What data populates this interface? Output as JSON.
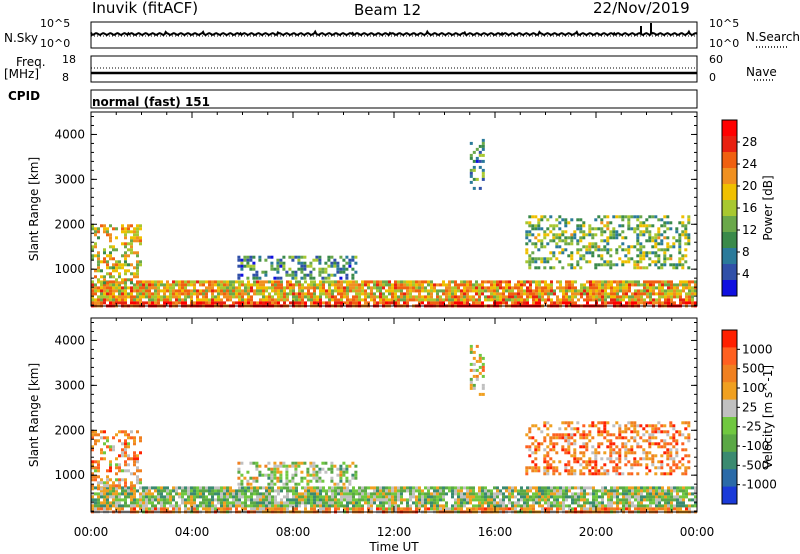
{
  "header": {
    "station": "Inuvik (fitACF)",
    "beam": "Beam 12",
    "date": "22/Nov/2019"
  },
  "top_panels": {
    "nsky_label": "N.Sky",
    "nsky_ticks": [
      "10^5",
      "10^0"
    ],
    "nsearch_label": "N.Search",
    "nsearch_ticks": [
      "10^5",
      "10^0"
    ],
    "freq_label": "Freq.",
    "freq_unit": "[MHz]",
    "freq_ticks": [
      "18",
      "8"
    ],
    "nave_label": "Nave",
    "nave_ticks": [
      "60",
      "0"
    ],
    "cpid_label": "CPID",
    "cpid_value": "normal (fast) 151"
  },
  "colors": {
    "power_scale": [
      "#1010e0",
      "#3050a8",
      "#2a7a9a",
      "#3a8a4a",
      "#6aa84a",
      "#a8c830",
      "#f0c000",
      "#f09020",
      "#f06010",
      "#e82010",
      "#ff0000"
    ],
    "velocity_scale": [
      "#1a3ad8",
      "#2a6aa8",
      "#3a8a70",
      "#5aa845",
      "#70c840",
      "#c0c0c0",
      "#f0a020",
      "#f08020",
      "#ff6020",
      "#ff2000"
    ]
  },
  "chart_data": [
    {
      "type": "heatmap",
      "name": "power",
      "ylabel": "Slant Range [km]",
      "ylim": [
        180,
        4500
      ],
      "yticks": [
        1000,
        2000,
        3000,
        4000
      ],
      "colorbar_label": "Power [dB]",
      "colorbar_ticks": [
        "28",
        "24",
        "20",
        "16",
        "12",
        "8",
        "4"
      ],
      "cbar_range": [
        0,
        32
      ],
      "regions": [
        {
          "t0": 0.0,
          "t1": 24.0,
          "r0": 190,
          "r1": 750,
          "level": 0.62
        },
        {
          "t0": 0.0,
          "t1": 2.0,
          "r0": 700,
          "r1": 2000,
          "level": 0.55
        },
        {
          "t0": 5.8,
          "t1": 10.5,
          "r0": 800,
          "r1": 1300,
          "level": 0.3
        },
        {
          "t0": 17.2,
          "t1": 23.7,
          "r0": 1000,
          "r1": 2200,
          "level": 0.42
        },
        {
          "t0": 15.0,
          "t1": 15.5,
          "r0": 2800,
          "r1": 3900,
          "level": 0.3
        }
      ]
    },
    {
      "type": "heatmap",
      "name": "velocity",
      "ylabel": "Slant Range [km]",
      "xlabel": "Time UT",
      "xticks": [
        "00:00",
        "04:00",
        "08:00",
        "12:00",
        "16:00",
        "20:00",
        "00:00"
      ],
      "ylim": [
        180,
        4500
      ],
      "yticks": [
        1000,
        2000,
        3000,
        4000
      ],
      "colorbar_label": "Velocity [m s^-1]",
      "colorbar_ticks": [
        "1000",
        "500",
        "100",
        "25",
        "-25",
        "-100",
        "-500",
        "-1000"
      ],
      "regions": [
        {
          "t0": 0.0,
          "t1": 24.0,
          "r0": 190,
          "r1": 750,
          "level": 0.45
        },
        {
          "t0": 0.0,
          "t1": 2.0,
          "r0": 700,
          "r1": 2000,
          "level": 0.7
        },
        {
          "t0": 5.8,
          "t1": 10.5,
          "r0": 800,
          "r1": 1300,
          "level": 0.5
        },
        {
          "t0": 17.2,
          "t1": 23.7,
          "r0": 1000,
          "r1": 2200,
          "level": 0.75
        },
        {
          "t0": 15.0,
          "t1": 15.5,
          "r0": 2800,
          "r1": 3900,
          "level": 0.6
        }
      ]
    }
  ]
}
